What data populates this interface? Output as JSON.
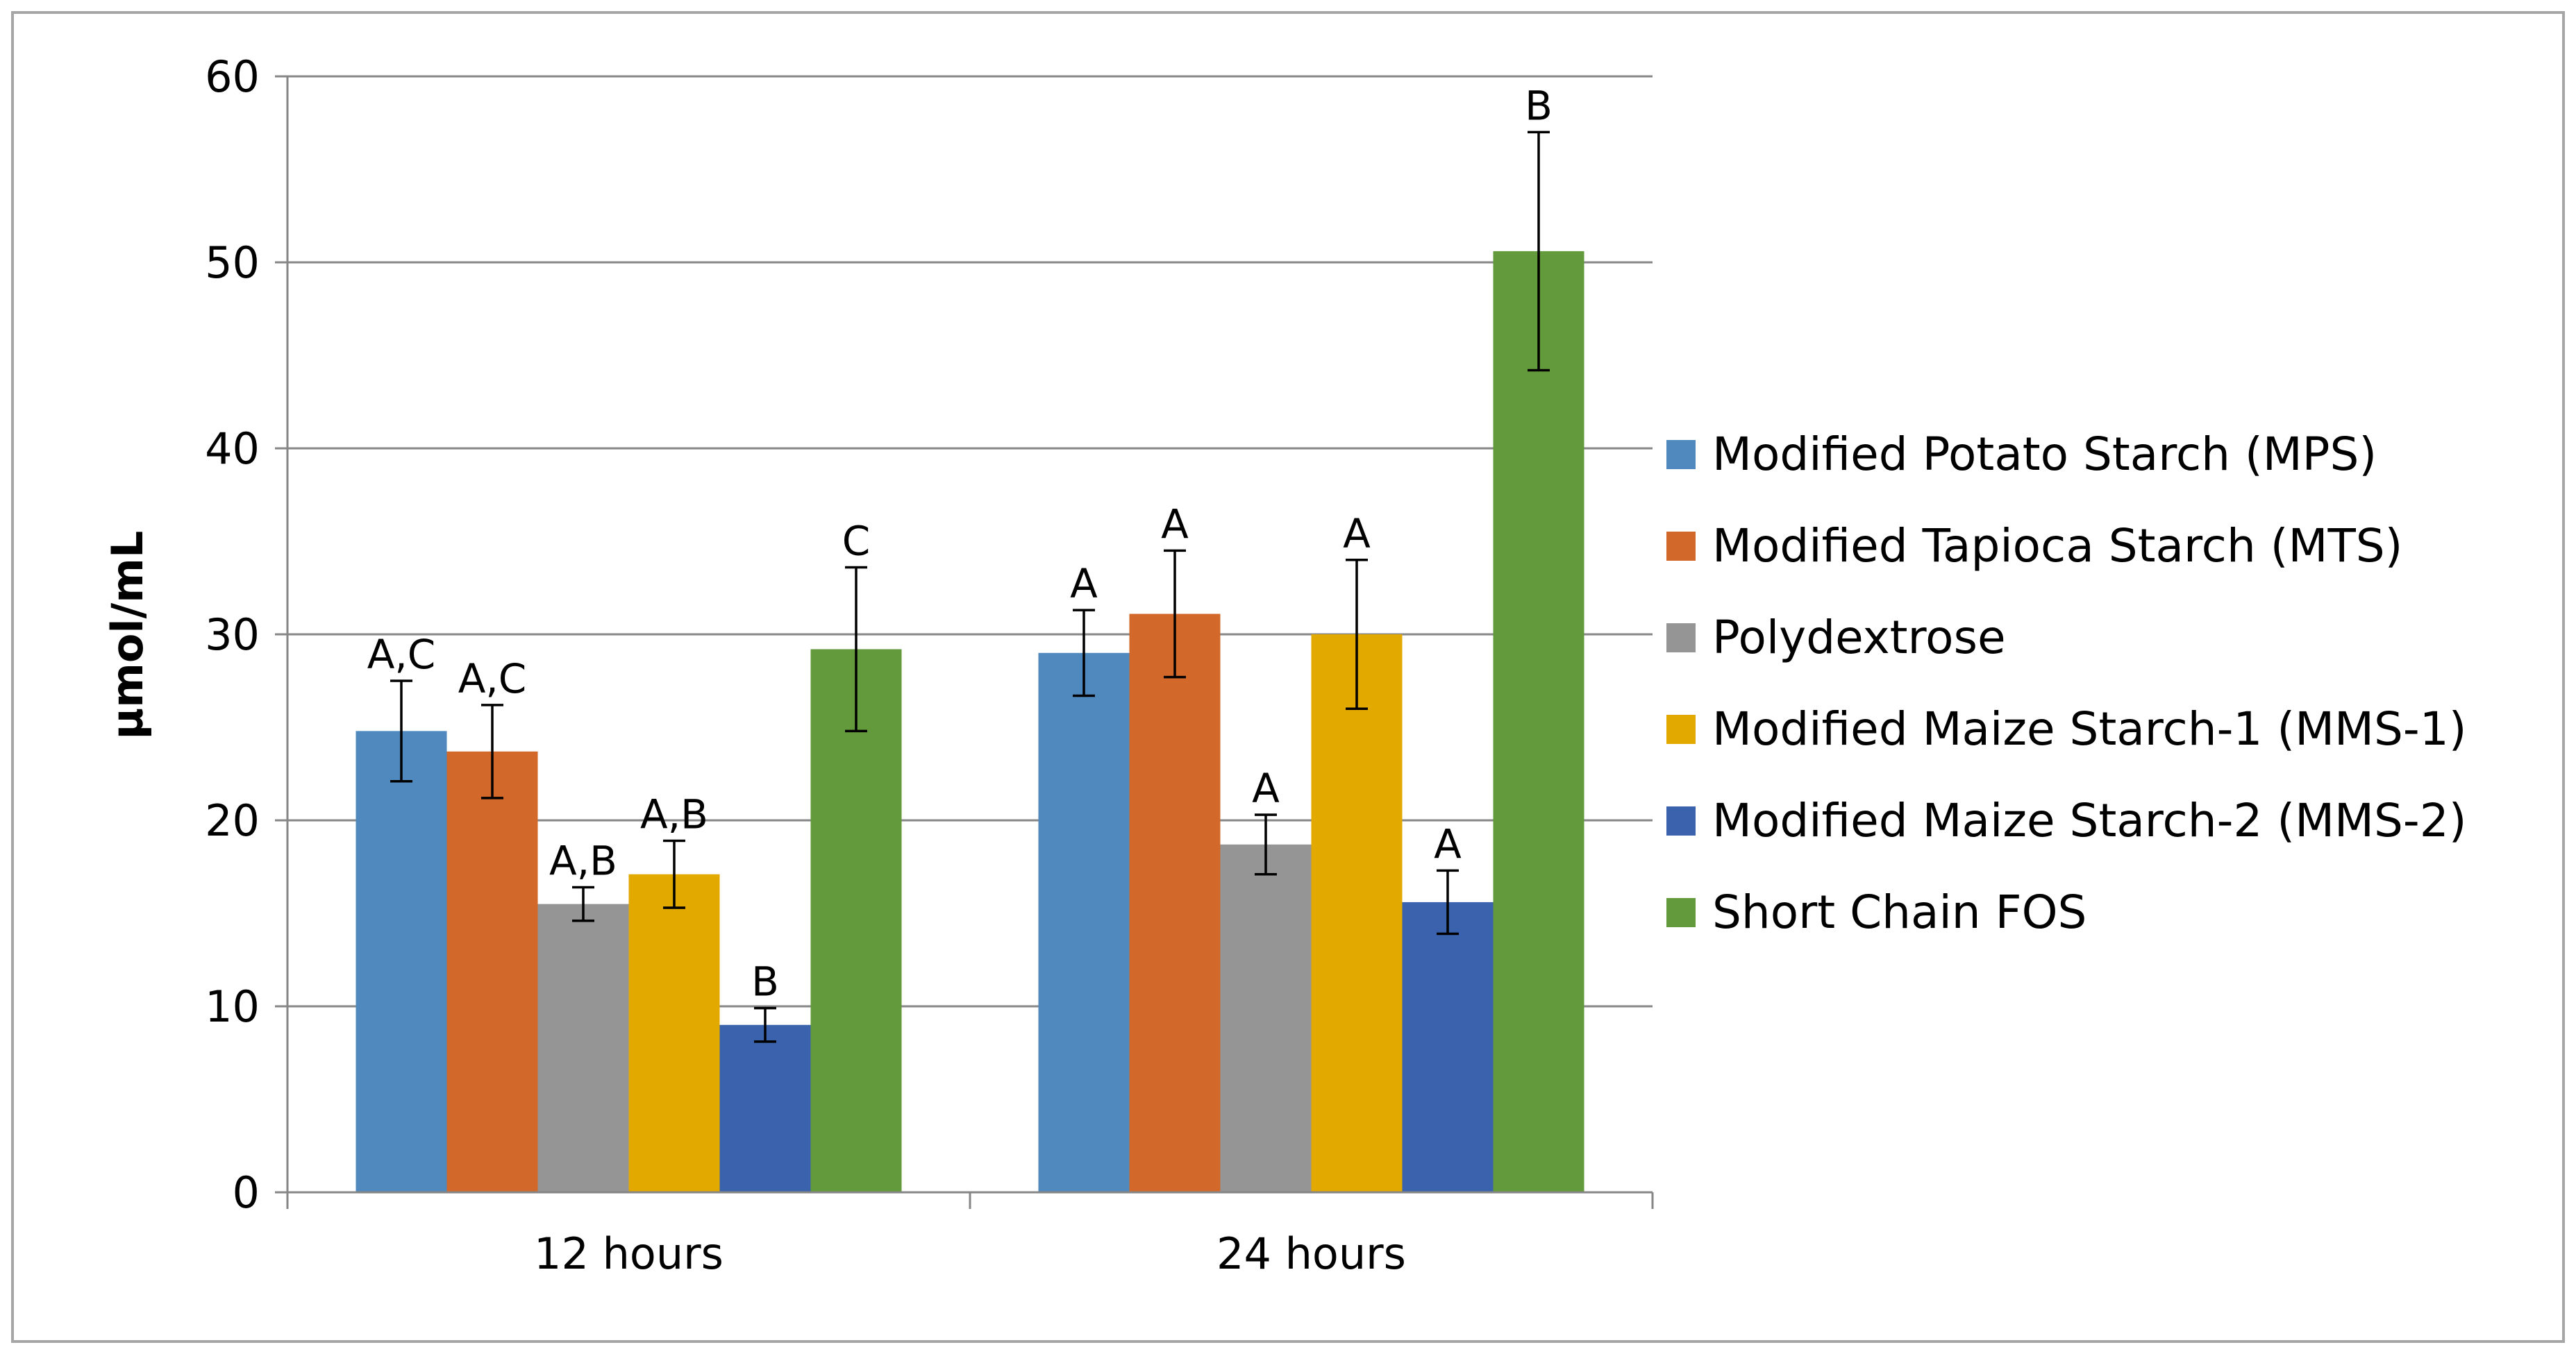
{
  "chart_data": {
    "type": "bar",
    "title": "",
    "xlabel": "",
    "ylabel": "µmol/mL",
    "ylim": [
      0,
      60
    ],
    "yticks": [
      0,
      10,
      20,
      30,
      40,
      50,
      60
    ],
    "grid": true,
    "legend_position": "right",
    "categories": [
      "12 hours",
      "24 hours"
    ],
    "series": [
      {
        "name": "Modified Potato Starch (MPS)",
        "color": "#4f89be",
        "values": [
          24.8,
          29.0
        ],
        "errors": [
          2.7,
          2.3
        ],
        "labels": [
          "A,C",
          "A"
        ]
      },
      {
        "name": "Modified Tapioca Starch (MTS)",
        "color": "#d2692a",
        "values": [
          23.7,
          31.1
        ],
        "errors": [
          2.5,
          3.4
        ],
        "labels": [
          "A,C",
          "A"
        ]
      },
      {
        "name": "Polydextrose",
        "color": "#959595",
        "values": [
          15.5,
          18.7
        ],
        "errors": [
          0.9,
          1.6
        ],
        "labels": [
          "A,B",
          "A"
        ]
      },
      {
        "name": "Modified Maize Starch-1 (MMS-1)",
        "color": "#e2aa00",
        "values": [
          17.1,
          30.0
        ],
        "errors": [
          1.8,
          4.0
        ],
        "labels": [
          "A,B",
          "A"
        ]
      },
      {
        "name": "Modified Maize Starch-2 (MMS-2)",
        "color": "#3b63ad",
        "values": [
          9.0,
          15.6
        ],
        "errors": [
          0.9,
          1.7
        ],
        "labels": [
          "B",
          "A"
        ]
      },
      {
        "name": "Short Chain FOS",
        "color": "#639a3b",
        "values": [
          29.2,
          50.6
        ],
        "errors": [
          4.4,
          6.4
        ],
        "labels": [
          "C",
          "B"
        ]
      }
    ]
  }
}
